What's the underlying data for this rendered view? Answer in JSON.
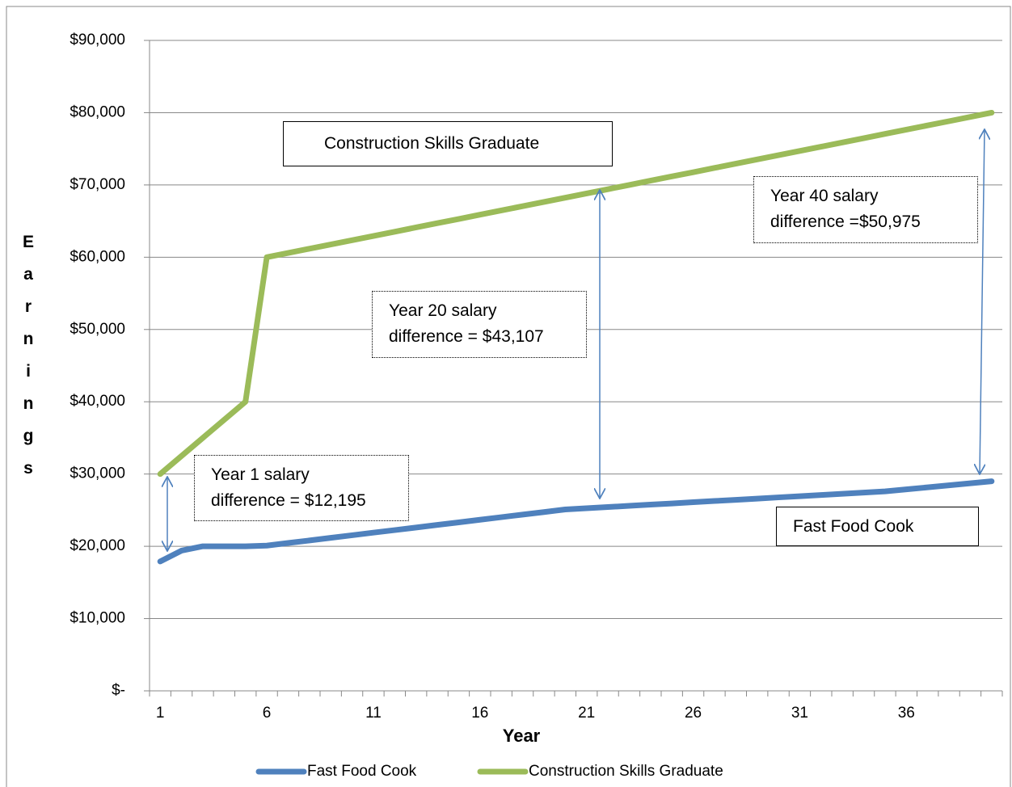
{
  "chart_data": {
    "type": "line",
    "xlabel": "Year",
    "ylabel": "Earnings",
    "categories": [
      1,
      null,
      null,
      null,
      null,
      6,
      null,
      null,
      null,
      null,
      11,
      null,
      null,
      null,
      null,
      16,
      null,
      null,
      null,
      null,
      21,
      null,
      null,
      null,
      null,
      26,
      null,
      null,
      null,
      null,
      31,
      null,
      null,
      null,
      null,
      36,
      null,
      null,
      null,
      null
    ],
    "series": [
      {
        "name": "Fast Food Cook",
        "color": "#4f81bd",
        "values": [
          17900,
          19400,
          20000,
          20000,
          20000,
          20100,
          20460,
          20810,
          21170,
          21530,
          21890,
          22240,
          22600,
          22960,
          23310,
          23670,
          24030,
          24390,
          24740,
          25100,
          25270,
          25430,
          25600,
          25770,
          25930,
          26100,
          26270,
          26430,
          26600,
          26770,
          26930,
          27100,
          27270,
          27430,
          27600,
          27880,
          28160,
          28440,
          28720,
          29000
        ]
      },
      {
        "name": "Construction Skills Graduate",
        "color": "#9bbb59",
        "values": [
          30000,
          32500,
          35000,
          37500,
          40000,
          60000,
          60590,
          61180,
          61760,
          62350,
          62940,
          63530,
          64120,
          64710,
          65290,
          65880,
          66470,
          67060,
          67650,
          68240,
          68820,
          69410,
          70000,
          70590,
          71180,
          71760,
          72350,
          72940,
          73530,
          74120,
          74710,
          75290,
          75880,
          76470,
          77060,
          77650,
          78240,
          78820,
          79410,
          80000
        ]
      }
    ],
    "ylim": [
      0,
      90000
    ],
    "yticks": [
      {
        "value": 0,
        "label": "$-"
      },
      {
        "value": 10000,
        "label": "$10,000"
      },
      {
        "value": 20000,
        "label": "$20,000"
      },
      {
        "value": 30000,
        "label": "$30,000"
      },
      {
        "value": 40000,
        "label": "$40,000"
      },
      {
        "value": 50000,
        "label": "$50,000"
      },
      {
        "value": 60000,
        "label": "$60,000"
      },
      {
        "value": 70000,
        "label": "$70,000"
      },
      {
        "value": 80000,
        "label": "$80,000"
      },
      {
        "value": 90000,
        "label": "$90,000"
      }
    ],
    "grid": true,
    "legend": "bottom",
    "annotations": [
      {
        "lines": [
          "Construction Skills Graduate"
        ]
      },
      {
        "lines": [
          "Fast Food Cook"
        ]
      },
      {
        "lines": [
          "Year 1 salary",
          "difference = $12,195"
        ]
      },
      {
        "lines": [
          "Year 20 salary",
          "difference = $43,107"
        ]
      },
      {
        "lines": [
          "Year 40 salary",
          "difference =$50,975"
        ]
      }
    ]
  }
}
